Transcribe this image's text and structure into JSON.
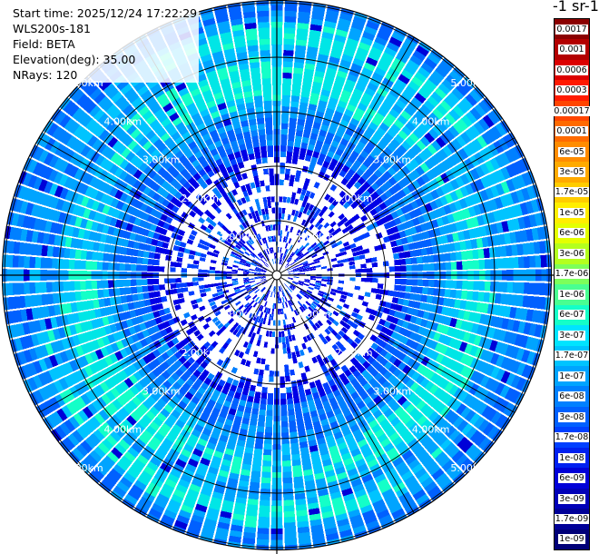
{
  "header": {
    "start_time": "Start time: 2025/12/24 17:22:29",
    "device": "WLS200s-181",
    "field": "Field: BETA",
    "elevation": "Elevation(deg): 35.00",
    "nrays": "NRays: 120",
    "units": "-1 sr-1"
  },
  "range_labels": [
    "1.00km",
    "2.00km",
    "3.00km",
    "4.00km",
    "5.00km"
  ],
  "colorbar": {
    "ticks": [
      "0.0017",
      "0.001",
      "0.0006",
      "0.0003",
      "0.00017",
      "0.0001",
      "6e-05",
      "3e-05",
      "1.7e-05",
      "1e-05",
      "6e-06",
      "3e-06",
      "1.7e-06",
      "1e-06",
      "6e-07",
      "3e-07",
      "1.7e-07",
      "1e-07",
      "6e-08",
      "3e-08",
      "1.7e-08",
      "1e-08",
      "6e-09",
      "3e-09",
      "1.7e-09",
      "1e-09"
    ],
    "colors": [
      "#8b0000",
      "#b30000",
      "#dc0000",
      "#ff1a00",
      "#ff4500",
      "#ff6a00",
      "#ff8c00",
      "#ffaa00",
      "#ffcc00",
      "#ffee00",
      "#e4ff00",
      "#b4ff1e",
      "#7dff5a",
      "#49ff91",
      "#14ffc8",
      "#00e4ff",
      "#00c4ff",
      "#00a4ff",
      "#0080ff",
      "#0060ff",
      "#0040ff",
      "#0020f0",
      "#0000d8",
      "#0000b8",
      "#000098",
      "#000078"
    ]
  }
}
